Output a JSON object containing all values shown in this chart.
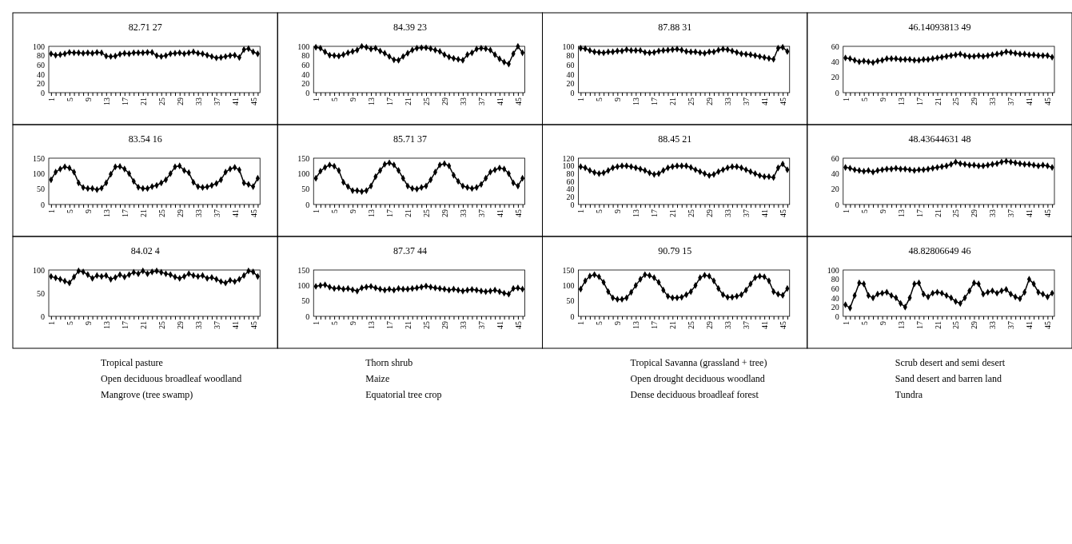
{
  "chart_data": [
    {
      "type": "line",
      "title": "82.71 27",
      "categories": [
        "1",
        null,
        null,
        null,
        "5",
        null,
        null,
        null,
        "9",
        null,
        null,
        null,
        "13",
        null,
        null,
        null,
        "17",
        null,
        null,
        null,
        "21",
        null,
        null,
        null,
        "25",
        null,
        null,
        null,
        "29",
        null,
        null,
        null,
        "33",
        null,
        null,
        null,
        "37",
        null,
        null,
        null,
        "41",
        null,
        null,
        null,
        "45",
        null
      ],
      "ylim": [
        0,
        100
      ],
      "yticks": [
        0,
        20,
        40,
        60,
        80,
        100
      ],
      "marker": "diamond",
      "annotations": [
        "Tropical pasture"
      ],
      "series": [
        {
          "color": "#000000",
          "values": [
            84,
            81,
            82,
            84,
            87,
            86,
            86,
            85,
            86,
            85,
            87,
            86,
            79,
            78,
            79,
            83,
            85,
            84,
            86,
            86,
            86,
            87,
            87,
            80,
            78,
            80,
            84,
            85,
            86,
            84,
            86,
            88,
            85,
            84,
            81,
            78,
            75,
            76,
            78,
            80,
            81,
            76,
            93,
            95,
            88,
            84
          ]
        }
      ]
    },
    {
      "type": "line",
      "title": "84.39 23",
      "categories": [
        "1",
        null,
        null,
        null,
        "5",
        null,
        null,
        null,
        "9",
        null,
        null,
        null,
        "13",
        null,
        null,
        null,
        "17",
        null,
        null,
        null,
        "21",
        null,
        null,
        null,
        "25",
        null,
        null,
        null,
        "29",
        null,
        null,
        null,
        "33",
        null,
        null,
        null,
        "37",
        null,
        null,
        null,
        "41",
        null,
        null,
        null,
        "45",
        null
      ],
      "ylim": [
        0,
        100
      ],
      "yticks": [
        0,
        20,
        40,
        60,
        80,
        100
      ],
      "marker": "diamond",
      "annotations": [
        "Thorn shrub"
      ],
      "series": [
        {
          "color": "#000000",
          "values": [
            98,
            96,
            88,
            81,
            80,
            79,
            82,
            86,
            89,
            92,
            100,
            98,
            94,
            96,
            90,
            85,
            78,
            71,
            70,
            78,
            85,
            92,
            96,
            97,
            97,
            95,
            92,
            89,
            82,
            77,
            74,
            72,
            70,
            82,
            86,
            94,
            96,
            95,
            92,
            82,
            73,
            66,
            62,
            84,
            100,
            86
          ]
        }
      ]
    },
    {
      "type": "line",
      "title": "87.88 31",
      "categories": [
        "1",
        null,
        null,
        null,
        "5",
        null,
        null,
        null,
        "9",
        null,
        null,
        null,
        "13",
        null,
        null,
        null,
        "17",
        null,
        null,
        null,
        "21",
        null,
        null,
        null,
        "25",
        null,
        null,
        null,
        "29",
        null,
        null,
        null,
        "33",
        null,
        null,
        null,
        "37",
        null,
        null,
        null,
        "41",
        null,
        null,
        null,
        "45",
        null
      ],
      "ylim": [
        0,
        100
      ],
      "yticks": [
        0,
        20,
        40,
        60,
        80,
        100
      ],
      "marker": "diamond",
      "annotations": [
        "Tropical Savanna (grassland + tree)"
      ],
      "series": [
        {
          "color": "#000000",
          "values": [
            96,
            95,
            91,
            88,
            87,
            86,
            88,
            88,
            90,
            90,
            93,
            91,
            91,
            91,
            87,
            86,
            87,
            90,
            91,
            92,
            93,
            94,
            92,
            89,
            88,
            88,
            86,
            85,
            88,
            88,
            92,
            94,
            93,
            90,
            87,
            84,
            83,
            82,
            80,
            78,
            76,
            74,
            72,
            96,
            98,
            89
          ]
        }
      ]
    },
    {
      "type": "line",
      "title": "46.14093813 49",
      "categories": [
        "1",
        null,
        null,
        null,
        "5",
        null,
        null,
        null,
        "9",
        null,
        null,
        null,
        "13",
        null,
        null,
        null,
        "17",
        null,
        null,
        null,
        "21",
        null,
        null,
        null,
        "25",
        null,
        null,
        null,
        "29",
        null,
        null,
        null,
        "33",
        null,
        null,
        null,
        "37",
        null,
        null,
        null,
        "41",
        null,
        null,
        null,
        "45",
        null
      ],
      "ylim": [
        0,
        60
      ],
      "yticks": [
        0,
        20,
        40,
        60
      ],
      "marker": "diamond",
      "annotations": [
        "Scrub desert and semi desert"
      ],
      "series": [
        {
          "color": "#000000",
          "values": [
            45,
            44,
            42,
            40,
            41,
            40,
            39,
            41,
            42,
            44,
            44,
            44,
            43,
            43,
            43,
            42,
            42,
            43,
            43,
            44,
            45,
            46,
            47,
            48,
            49,
            50,
            48,
            47,
            47,
            48,
            47,
            48,
            49,
            50,
            51,
            53,
            52,
            51,
            50,
            50,
            49,
            49,
            48,
            48,
            48,
            46
          ]
        }
      ]
    },
    {
      "type": "line",
      "title": "83.54 16",
      "categories": [
        "1",
        null,
        null,
        null,
        "5",
        null,
        null,
        null,
        "9",
        null,
        null,
        null,
        "13",
        null,
        null,
        null,
        "17",
        null,
        null,
        null,
        "21",
        null,
        null,
        null,
        "25",
        null,
        null,
        null,
        "29",
        null,
        null,
        null,
        "33",
        null,
        null,
        null,
        "37",
        null,
        null,
        null,
        "41",
        null,
        null,
        null,
        "45",
        null
      ],
      "ylim": [
        0,
        150
      ],
      "yticks": [
        0,
        50,
        100,
        150
      ],
      "marker": "diamond",
      "annotations": [
        "Open deciduous broadleaf woodland"
      ],
      "series": [
        {
          "color": "#000000",
          "values": [
            80,
            105,
            115,
            122,
            118,
            105,
            70,
            55,
            52,
            52,
            48,
            53,
            70,
            98,
            122,
            123,
            115,
            100,
            75,
            56,
            52,
            52,
            58,
            62,
            70,
            80,
            100,
            122,
            125,
            110,
            103,
            72,
            58,
            55,
            57,
            62,
            68,
            80,
            105,
            115,
            120,
            112,
            70,
            65,
            58,
            85
          ]
        }
      ]
    },
    {
      "type": "line",
      "title": "85.71 37",
      "categories": [
        "1",
        null,
        null,
        null,
        "5",
        null,
        null,
        null,
        "9",
        null,
        null,
        null,
        "13",
        null,
        null,
        null,
        "17",
        null,
        null,
        null,
        "21",
        null,
        null,
        null,
        "25",
        null,
        null,
        null,
        "29",
        null,
        null,
        null,
        "33",
        null,
        null,
        null,
        "37",
        null,
        null,
        null,
        "41",
        null,
        null,
        null,
        "45",
        null
      ],
      "ylim": [
        0,
        150
      ],
      "yticks": [
        0,
        50,
        100,
        150
      ],
      "marker": "diamond",
      "annotations": [
        "Maize"
      ],
      "series": [
        {
          "color": "#000000",
          "values": [
            85,
            108,
            120,
            128,
            124,
            110,
            72,
            58,
            45,
            45,
            42,
            45,
            60,
            90,
            110,
            130,
            135,
            128,
            110,
            85,
            60,
            52,
            50,
            55,
            60,
            80,
            105,
            128,
            132,
            125,
            95,
            75,
            60,
            55,
            52,
            55,
            65,
            85,
            105,
            112,
            118,
            115,
            100,
            70,
            60,
            85
          ]
        }
      ]
    },
    {
      "type": "line",
      "title": "88.45 21",
      "categories": [
        "1",
        null,
        null,
        null,
        "5",
        null,
        null,
        null,
        "9",
        null,
        null,
        null,
        "13",
        null,
        null,
        null,
        "17",
        null,
        null,
        null,
        "21",
        null,
        null,
        null,
        "25",
        null,
        null,
        null,
        "29",
        null,
        null,
        null,
        "33",
        null,
        null,
        null,
        "37",
        null,
        null,
        null,
        "41",
        null,
        null,
        null,
        "45",
        null
      ],
      "ylim": [
        0,
        120
      ],
      "yticks": [
        0,
        20,
        40,
        60,
        80,
        100,
        120
      ],
      "marker": "diamond",
      "annotations": [
        "Open drought deciduous woodland"
      ],
      "series": [
        {
          "color": "#000000",
          "values": [
            98,
            95,
            88,
            83,
            80,
            82,
            88,
            95,
            98,
            100,
            100,
            98,
            95,
            92,
            88,
            82,
            78,
            80,
            88,
            95,
            98,
            100,
            100,
            100,
            96,
            90,
            85,
            80,
            75,
            78,
            85,
            90,
            95,
            98,
            98,
            95,
            90,
            85,
            80,
            75,
            72,
            72,
            70,
            95,
            105,
            90
          ]
        }
      ]
    },
    {
      "type": "line",
      "title": "48.43644631 48",
      "categories": [
        "1",
        null,
        null,
        null,
        "5",
        null,
        null,
        null,
        "9",
        null,
        null,
        null,
        "13",
        null,
        null,
        null,
        "17",
        null,
        null,
        null,
        "21",
        null,
        null,
        null,
        "25",
        null,
        null,
        null,
        "29",
        null,
        null,
        null,
        "33",
        null,
        null,
        null,
        "37",
        null,
        null,
        null,
        "41",
        null,
        null,
        null,
        "45",
        null
      ],
      "ylim": [
        0,
        60
      ],
      "yticks": [
        0,
        20,
        40,
        60
      ],
      "marker": "diamond",
      "annotations": [
        "Sand desert and barren land"
      ],
      "series": [
        {
          "color": "#000000",
          "values": [
            48,
            47,
            45,
            44,
            43,
            44,
            42,
            44,
            45,
            46,
            46,
            47,
            46,
            46,
            45,
            44,
            45,
            45,
            46,
            47,
            48,
            49,
            50,
            52,
            55,
            53,
            52,
            51,
            51,
            50,
            50,
            51,
            52,
            53,
            55,
            56,
            55,
            54,
            53,
            52,
            52,
            51,
            50,
            51,
            50,
            48
          ]
        }
      ]
    },
    {
      "type": "line",
      "title": "84.02 4",
      "categories": [
        "1",
        null,
        null,
        null,
        "5",
        null,
        null,
        null,
        "9",
        null,
        null,
        null,
        "13",
        null,
        null,
        null,
        "17",
        null,
        null,
        null,
        "21",
        null,
        null,
        null,
        "25",
        null,
        null,
        null,
        "29",
        null,
        null,
        null,
        "33",
        null,
        null,
        null,
        "37",
        null,
        null,
        null,
        "41",
        null,
        null,
        null,
        "45",
        null
      ],
      "ylim": [
        0,
        100
      ],
      "yticks": [
        0,
        50,
        100
      ],
      "marker": "diamond",
      "annotations": [
        "Mangrove (tree swamp)"
      ],
      "series": [
        {
          "color": "#000000",
          "values": [
            86,
            83,
            80,
            76,
            72,
            85,
            98,
            96,
            90,
            82,
            88,
            86,
            88,
            80,
            84,
            90,
            85,
            90,
            95,
            92,
            98,
            92,
            96,
            98,
            95,
            92,
            90,
            85,
            82,
            86,
            92,
            88,
            86,
            88,
            82,
            84,
            80,
            75,
            72,
            78,
            75,
            80,
            88,
            98,
            96,
            86
          ]
        }
      ]
    },
    {
      "type": "line",
      "title": "87.37 44",
      "categories": [
        "1",
        null,
        null,
        null,
        "5",
        null,
        null,
        null,
        "9",
        null,
        null,
        null,
        "13",
        null,
        null,
        null,
        "17",
        null,
        null,
        null,
        "21",
        null,
        null,
        null,
        "25",
        null,
        null,
        null,
        "29",
        null,
        null,
        null,
        "33",
        null,
        null,
        null,
        "37",
        null,
        null,
        null,
        "41",
        null,
        null,
        null,
        "45",
        null
      ],
      "ylim": [
        0,
        150
      ],
      "yticks": [
        0,
        50,
        100,
        150
      ],
      "marker": "diamond",
      "annotations": [
        "Equatorial tree crop"
      ],
      "series": [
        {
          "color": "#000000",
          "values": [
            97,
            100,
            102,
            95,
            90,
            92,
            88,
            90,
            86,
            82,
            92,
            95,
            97,
            92,
            88,
            85,
            88,
            85,
            90,
            88,
            88,
            90,
            92,
            95,
            98,
            95,
            92,
            90,
            88,
            85,
            88,
            85,
            82,
            85,
            87,
            85,
            82,
            80,
            82,
            85,
            80,
            75,
            72,
            90,
            92,
            88
          ]
        }
      ]
    },
    {
      "type": "line",
      "title": "90.79 15",
      "categories": [
        "1",
        null,
        null,
        null,
        "5",
        null,
        null,
        null,
        "9",
        null,
        null,
        null,
        "13",
        null,
        null,
        null,
        "17",
        null,
        null,
        null,
        "21",
        null,
        null,
        null,
        "25",
        null,
        null,
        null,
        "29",
        null,
        null,
        null,
        "33",
        null,
        null,
        null,
        "37",
        null,
        null,
        null,
        "41",
        null,
        null,
        null,
        "45",
        null
      ],
      "ylim": [
        0,
        150
      ],
      "yticks": [
        0,
        50,
        100,
        150
      ],
      "marker": "diamond",
      "annotations": [
        "Dense deciduous broadleaf forest"
      ],
      "series": [
        {
          "color": "#000000",
          "values": [
            88,
            115,
            130,
            135,
            128,
            110,
            80,
            60,
            55,
            55,
            60,
            78,
            100,
            120,
            135,
            132,
            125,
            110,
            85,
            65,
            60,
            60,
            62,
            70,
            80,
            100,
            125,
            133,
            130,
            115,
            90,
            70,
            62,
            62,
            65,
            70,
            85,
            105,
            125,
            130,
            128,
            115,
            80,
            72,
            68,
            90
          ]
        }
      ]
    },
    {
      "type": "line",
      "title": "48.82806649 46",
      "categories": [
        "1",
        null,
        null,
        null,
        "5",
        null,
        null,
        null,
        "9",
        null,
        null,
        null,
        "13",
        null,
        null,
        null,
        "17",
        null,
        null,
        null,
        "21",
        null,
        null,
        null,
        "25",
        null,
        null,
        null,
        "29",
        null,
        null,
        null,
        "33",
        null,
        null,
        null,
        "37",
        null,
        null,
        null,
        "41",
        null,
        null,
        null,
        "45",
        null
      ],
      "ylim": [
        0,
        100
      ],
      "yticks": [
        0,
        20,
        40,
        60,
        80,
        100
      ],
      "marker": "diamond",
      "annotations": [
        "Tundra"
      ],
      "series": [
        {
          "color": "#000000",
          "values": [
            25,
            18,
            45,
            72,
            70,
            45,
            40,
            48,
            50,
            52,
            45,
            40,
            28,
            20,
            40,
            70,
            72,
            48,
            42,
            50,
            52,
            50,
            45,
            40,
            32,
            28,
            40,
            55,
            72,
            70,
            48,
            52,
            55,
            50,
            55,
            58,
            48,
            42,
            38,
            52,
            80,
            70,
            52,
            48,
            42,
            50
          ]
        }
      ]
    }
  ]
}
